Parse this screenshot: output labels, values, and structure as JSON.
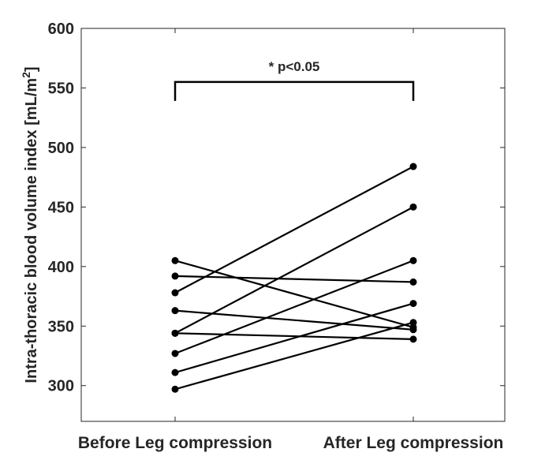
{
  "chart_data": {
    "type": "line",
    "categories": [
      "Before Leg compression",
      "After Leg compression"
    ],
    "ylabel": "Intra-thoracic blood volume index [mL/m",
    "ylabel_sup": "2",
    "ylabel_close": "]",
    "ylim": [
      270,
      600
    ],
    "yticks": [
      300,
      350,
      400,
      450,
      500,
      550,
      600
    ],
    "ytick_labels": [
      "300",
      "350",
      "400",
      "450",
      "500",
      "550",
      "600"
    ],
    "grid": false,
    "series": [
      {
        "values": [
          405,
          349
        ]
      },
      {
        "values": [
          392,
          387
        ]
      },
      {
        "values": [
          378,
          484
        ]
      },
      {
        "values": [
          363,
          347
        ]
      },
      {
        "values": [
          344,
          339
        ]
      },
      {
        "values": [
          327,
          405
        ]
      },
      {
        "values": [
          311,
          369
        ]
      },
      {
        "values": [
          297,
          353
        ]
      },
      {
        "values": [
          344,
          450
        ]
      }
    ],
    "annotation": {
      "text": "* p<0.05",
      "y": 555
    },
    "colors": {
      "line": "#000000",
      "axis": "#262626"
    }
  }
}
